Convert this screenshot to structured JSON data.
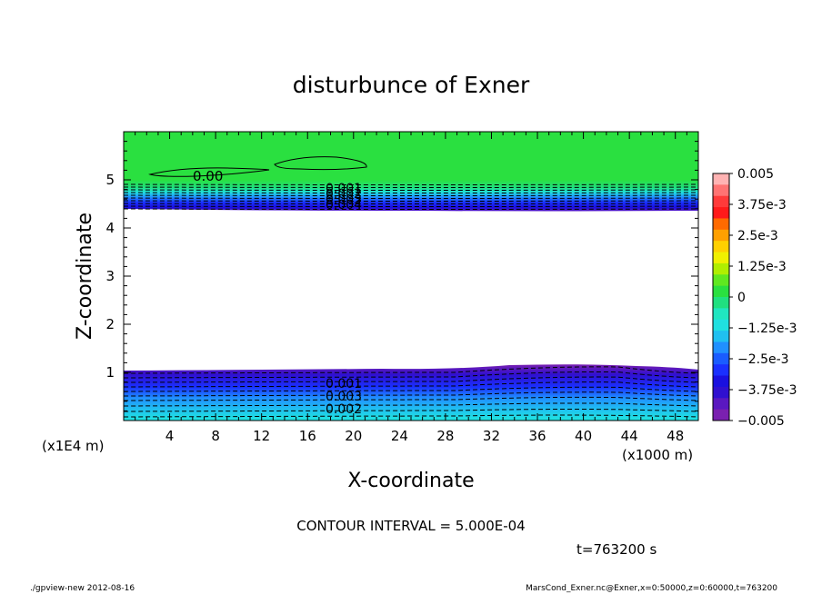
{
  "chart_data": {
    "type": "heatmap",
    "title": "disturbunce of Exner",
    "xlabel": "X-coordinate",
    "ylabel": "Z-coordinate",
    "x_unit": "(x1000 m)",
    "y_unit": "(x1E4 m)",
    "xlim": [
      0,
      50
    ],
    "ylim": [
      0,
      6
    ],
    "x_ticks": [
      "4",
      "8",
      "12",
      "16",
      "20",
      "24",
      "28",
      "32",
      "36",
      "40",
      "44",
      "48"
    ],
    "y_ticks": [
      "1",
      "2",
      "3",
      "4",
      "5"
    ],
    "colorbar": {
      "min": -0.005,
      "max": 0.005,
      "labels": [
        "0.005",
        "3.75e-3",
        "2.5e-3",
        "1.25e-3",
        "0",
        "−1.25e-3",
        "−2.5e-3",
        "−3.75e-3",
        "−0.005"
      ],
      "colors": [
        "#ffb3b3",
        "#ff7373",
        "#ff3a3a",
        "#ff1a1a",
        "#ff6a00",
        "#ffa000",
        "#ffd000",
        "#f0f000",
        "#b0ee00",
        "#60e820",
        "#2ae040",
        "#20e080",
        "#20e6c0",
        "#20e0e0",
        "#20c0f0",
        "#2090ff",
        "#1a5cff",
        "#1a30ff",
        "#1a10e0",
        "#3010d0",
        "#5a18c0",
        "#7a20b0"
      ],
      "min_color_hex": "#7a20b0",
      "max_color_hex": "#ffb3b3"
    },
    "contour_labels": [
      {
        "text": "0.00"
      },
      {
        "text": "0.001"
      },
      {
        "text": "0.002"
      },
      {
        "text": "0.003"
      },
      {
        "text": "0.004"
      },
      {
        "text": "0.001"
      },
      {
        "text": "0.003"
      },
      {
        "text": "0.002"
      }
    ],
    "contour_interval": "CONTOUR INTERVAL = 5.000E-04",
    "time_label": "t=763200 s",
    "footer_left": "./gpview-new 2012-08-16",
    "footer_right": "MarsCond_Exner.nc@Exner,x=0:50000,z=0:60000,t=763200"
  }
}
